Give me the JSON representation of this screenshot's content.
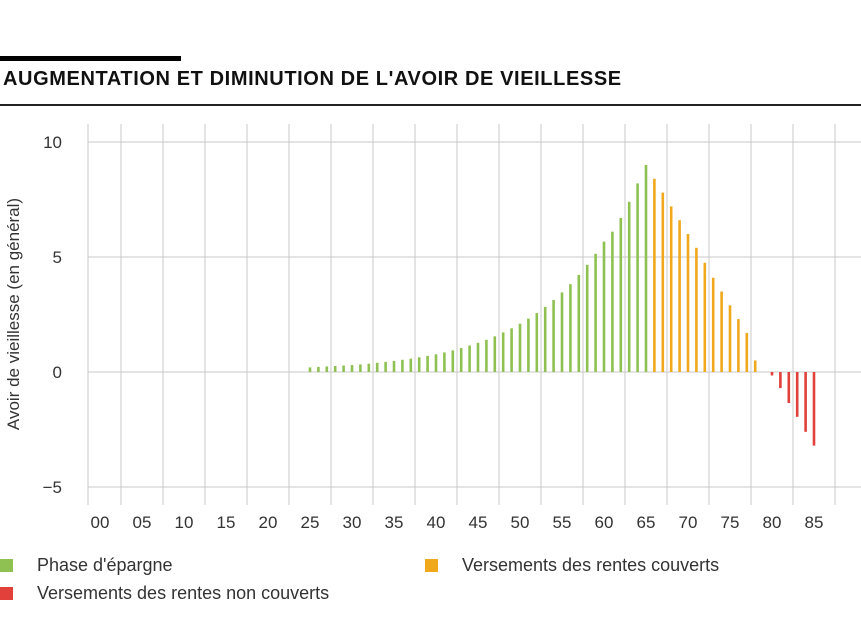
{
  "title": "AUGMENTATION ET DIMINUTION DE L'AVOIR DE VIEILLESSE",
  "colors": {
    "savings": "#8ec152",
    "covered": "#f0a81c",
    "uncovered": "#e2403a",
    "grid": "#c8c8c8"
  },
  "legend": {
    "savings": "Phase d'épargne",
    "covered": "Versements des rentes couverts",
    "uncovered": "Versements des rentes non couverts"
  },
  "chart_data": {
    "type": "bar",
    "ylabel": "Avoir de vieillesse (en général)",
    "xlabel": "",
    "ylim": [
      -5,
      10
    ],
    "yticks": [
      -5,
      0,
      5,
      10
    ],
    "xticks": [
      "00",
      "05",
      "10",
      "15",
      "20",
      "25",
      "30",
      "35",
      "40",
      "45",
      "50",
      "55",
      "60",
      "65",
      "70",
      "75",
      "80",
      "85"
    ],
    "grid": true,
    "legend_position": "bottom",
    "series": [
      {
        "key": "savings",
        "name": "Phase d'épargne",
        "x": [
          25,
          26,
          27,
          28,
          29,
          30,
          31,
          32,
          33,
          34,
          35,
          36,
          37,
          38,
          39,
          40,
          41,
          42,
          43,
          44,
          45,
          46,
          47,
          48,
          49,
          50,
          51,
          52,
          53,
          54,
          55,
          56,
          57,
          58,
          59,
          60,
          61,
          62,
          63,
          64,
          65
        ],
        "values": [
          0.2,
          0.22,
          0.24,
          0.26,
          0.28,
          0.3,
          0.33,
          0.36,
          0.4,
          0.44,
          0.48,
          0.53,
          0.58,
          0.64,
          0.7,
          0.77,
          0.85,
          0.94,
          1.04,
          1.15,
          1.27,
          1.4,
          1.55,
          1.72,
          1.9,
          2.1,
          2.32,
          2.56,
          2.83,
          3.13,
          3.46,
          3.82,
          4.22,
          4.66,
          5.14,
          5.67,
          6.1,
          6.7,
          7.4,
          8.2,
          9.0
        ]
      },
      {
        "key": "covered",
        "name": "Versements des rentes couverts",
        "x": [
          66,
          67,
          68,
          69,
          70,
          71,
          72,
          73,
          74,
          75,
          76,
          77,
          78
        ],
        "values": [
          8.4,
          7.8,
          7.2,
          6.6,
          6.0,
          5.4,
          4.75,
          4.1,
          3.5,
          2.9,
          2.3,
          1.7,
          0.5
        ]
      },
      {
        "key": "uncovered",
        "name": "Versements des rentes non couverts",
        "x": [
          80,
          81,
          82,
          83,
          84,
          85
        ],
        "values": [
          -0.15,
          -0.7,
          -1.35,
          -1.95,
          -2.6,
          -3.2
        ]
      }
    ]
  }
}
